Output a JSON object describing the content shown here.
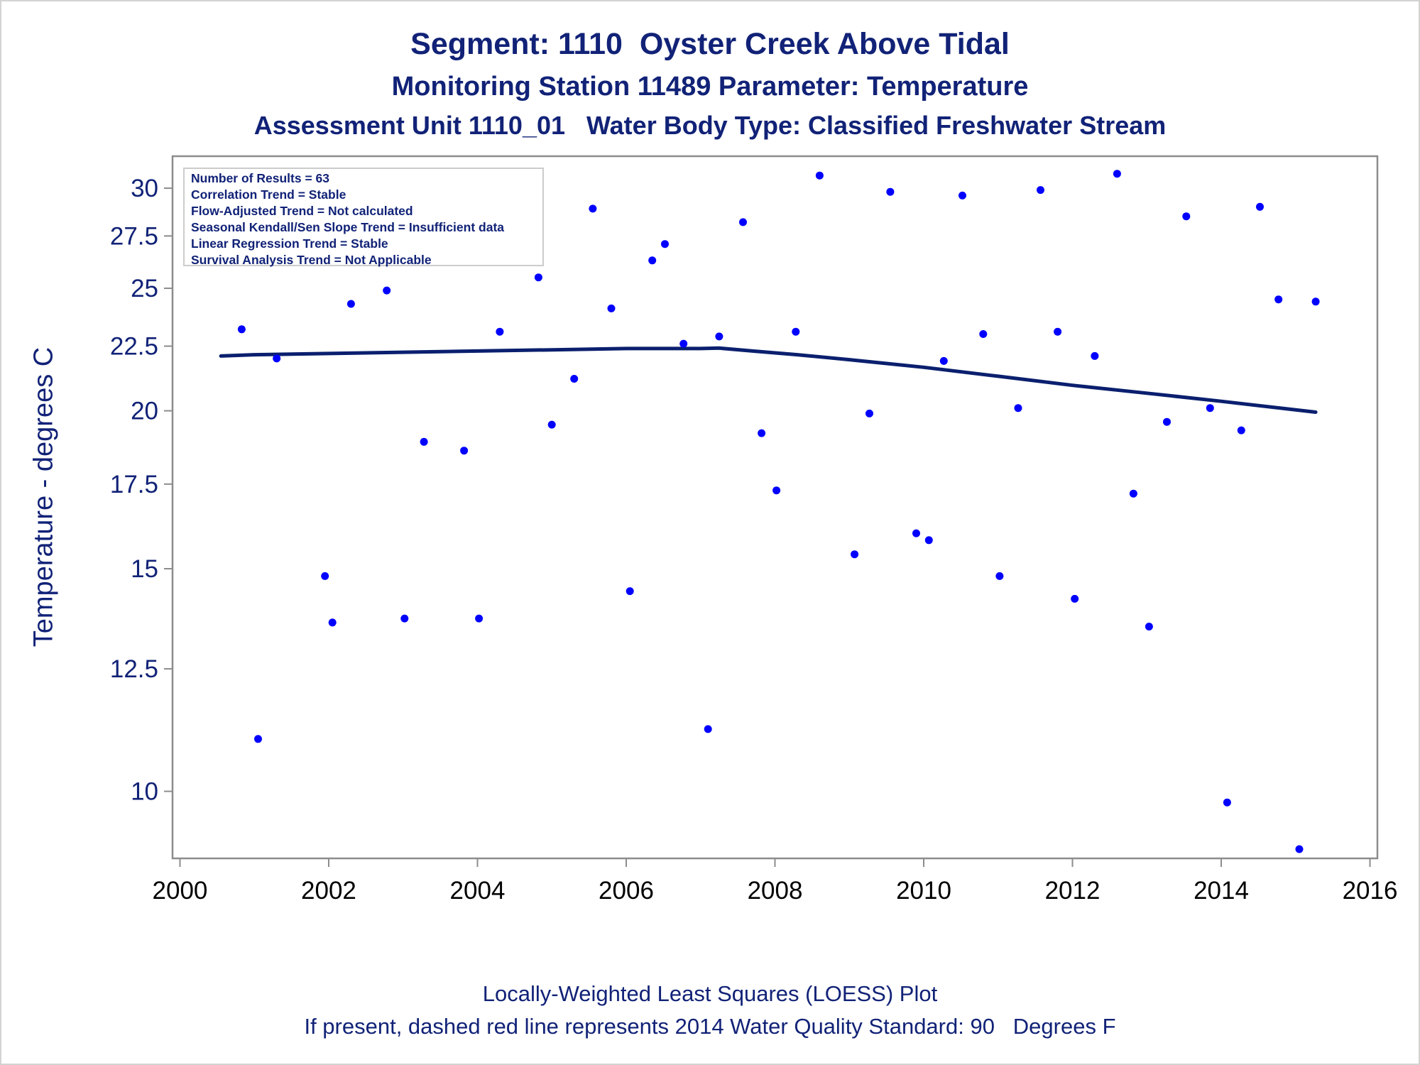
{
  "titles": {
    "line1": "Segment: 1110  Oyster Creek Above Tidal",
    "line2": "Monitoring Station 11489 Parameter: Temperature",
    "line3": "Assessment Unit 1110_01   Water Body Type: Classified Freshwater Stream"
  },
  "axis_labels": {
    "y": "Temperature - degrees C"
  },
  "info_box": {
    "line1": "Number of Results = 63",
    "line2": "Correlation Trend = Stable",
    "line3": "Flow-Adjusted Trend = Not calculated",
    "line4": "Seasonal Kendall/Sen Slope Trend = Insufficient data",
    "line5": "Linear Regression Trend = Stable",
    "line6": "Survival Analysis Trend = Not Applicable"
  },
  "footnotes": {
    "line1": "Locally-Weighted Least Squares (LOESS) Plot",
    "line2": "If present, dashed red line represents 2014 Water Quality Standard: 90   Degrees F"
  },
  "colors": {
    "points": "#0000ff",
    "loess_line": "#0a1f6e",
    "text": "#112277",
    "axis": "#8c8c8c"
  },
  "chart_data": {
    "type": "scatter",
    "xlabel": "",
    "ylabel": "Temperature - degrees C",
    "y_scale": "log",
    "xlim": [
      1999.9,
      2016.1
    ],
    "ylim": [
      8.85,
      31.8
    ],
    "x_ticks": [
      2000,
      2002,
      2004,
      2006,
      2008,
      2010,
      2012,
      2014,
      2016
    ],
    "y_ticks": [
      10,
      12.5,
      15,
      17.5,
      20,
      22.5,
      25,
      27.5,
      30
    ],
    "y_tick_labels": [
      "10",
      "12.5",
      "15",
      "17.5",
      "20",
      "22.5",
      "25",
      "27.5",
      "30"
    ],
    "grid": false,
    "legend": "none",
    "series": [
      {
        "kind": "points",
        "points": [
          [
            2000.55,
            27.8
          ],
          [
            2000.83,
            23.2
          ],
          [
            2001.05,
            11.0
          ],
          [
            2001.3,
            22.0
          ],
          [
            2001.55,
            28.5
          ],
          [
            2001.95,
            14.8
          ],
          [
            2002.05,
            13.6
          ],
          [
            2002.3,
            24.3
          ],
          [
            2002.48,
            28.1
          ],
          [
            2002.78,
            24.9
          ],
          [
            2003.02,
            13.7
          ],
          [
            2003.28,
            18.9
          ],
          [
            2003.52,
            28.2
          ],
          [
            2003.82,
            18.6
          ],
          [
            2004.02,
            13.7
          ],
          [
            2004.3,
            23.1
          ],
          [
            2004.42,
            28.6
          ],
          [
            2004.5,
            27.0
          ],
          [
            2004.55,
            27.9
          ],
          [
            2004.6,
            28.4
          ],
          [
            2004.68,
            27.7
          ],
          [
            2004.82,
            25.5
          ],
          [
            2005.0,
            19.5
          ],
          [
            2005.3,
            21.2
          ],
          [
            2005.55,
            28.9
          ],
          [
            2005.8,
            24.1
          ],
          [
            2006.05,
            14.4
          ],
          [
            2006.35,
            26.3
          ],
          [
            2006.52,
            27.1
          ],
          [
            2006.77,
            22.6
          ],
          [
            2007.1,
            11.2
          ],
          [
            2007.25,
            22.9
          ],
          [
            2007.57,
            28.2
          ],
          [
            2007.82,
            19.2
          ],
          [
            2008.02,
            17.3
          ],
          [
            2008.28,
            23.1
          ],
          [
            2008.6,
            30.7
          ],
          [
            2009.07,
            15.4
          ],
          [
            2009.27,
            19.9
          ],
          [
            2009.55,
            29.8
          ],
          [
            2009.9,
            16.0
          ],
          [
            2010.07,
            15.8
          ],
          [
            2010.27,
            21.9
          ],
          [
            2010.52,
            29.6
          ],
          [
            2010.8,
            23.0
          ],
          [
            2011.02,
            14.8
          ],
          [
            2011.27,
            20.1
          ],
          [
            2011.57,
            29.9
          ],
          [
            2011.8,
            23.1
          ],
          [
            2012.03,
            14.2
          ],
          [
            2012.3,
            22.1
          ],
          [
            2012.6,
            30.8
          ],
          [
            2012.82,
            17.2
          ],
          [
            2013.03,
            13.5
          ],
          [
            2013.27,
            19.6
          ],
          [
            2013.53,
            28.5
          ],
          [
            2013.85,
            20.1
          ],
          [
            2014.08,
            9.8
          ],
          [
            2014.27,
            19.3
          ],
          [
            2014.52,
            29.0
          ],
          [
            2014.77,
            24.5
          ],
          [
            2015.05,
            9.0
          ],
          [
            2015.27,
            24.4
          ]
        ]
      },
      {
        "kind": "loess_line",
        "points": [
          [
            2000.55,
            22.1
          ],
          [
            2001.0,
            22.15
          ],
          [
            2002.0,
            22.2
          ],
          [
            2003.0,
            22.25
          ],
          [
            2004.0,
            22.3
          ],
          [
            2005.0,
            22.35
          ],
          [
            2006.0,
            22.4
          ],
          [
            2007.0,
            22.4
          ],
          [
            2007.25,
            22.42
          ],
          [
            2007.7,
            22.3
          ],
          [
            2008.3,
            22.15
          ],
          [
            2009.0,
            21.95
          ],
          [
            2010.0,
            21.65
          ],
          [
            2011.0,
            21.3
          ],
          [
            2012.0,
            20.95
          ],
          [
            2013.0,
            20.65
          ],
          [
            2014.0,
            20.35
          ],
          [
            2015.27,
            19.95
          ]
        ]
      }
    ]
  }
}
